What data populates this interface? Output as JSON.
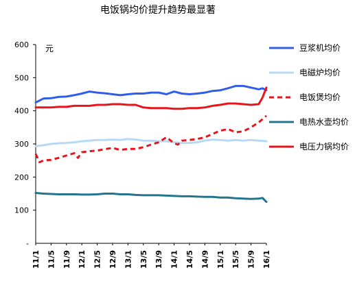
{
  "chart_data": {
    "type": "line",
    "title": "电饭锅均价提升趋势最显著",
    "unit_label": "元",
    "ylim": [
      0,
      600
    ],
    "y_ticks": [
      100,
      200,
      300,
      400,
      500,
      600
    ],
    "y_tick_labels": [
      "100",
      "200",
      "300",
      "400",
      "500",
      "600"
    ],
    "y_zero_label": "-",
    "x_tick_labels": [
      "11/1",
      "11/5",
      "11/9",
      "12/1",
      "12/5",
      "12/9",
      "13/1",
      "13/5",
      "13/9",
      "14/1",
      "14/5",
      "14/9",
      "15/1",
      "15/5",
      "15/9",
      "16/1"
    ],
    "x_range": [
      0,
      60
    ],
    "grid": false,
    "legend_position": "right",
    "series": [
      {
        "name": "豆浆机均价",
        "color": "#2f5ce8",
        "style": "solid",
        "x": [
          0,
          2,
          4,
          6,
          8,
          10,
          12,
          14,
          16,
          18,
          20,
          22,
          24,
          26,
          28,
          30,
          32,
          34,
          36,
          38,
          40,
          42,
          44,
          46,
          48,
          50,
          52,
          54,
          56,
          58,
          59,
          60
        ],
        "values": [
          425,
          437,
          438,
          442,
          443,
          447,
          452,
          458,
          455,
          453,
          450,
          447,
          450,
          452,
          452,
          455,
          455,
          450,
          458,
          452,
          450,
          452,
          455,
          460,
          462,
          468,
          475,
          475,
          470,
          465,
          468,
          462
        ]
      },
      {
        "name": "电磁炉均价",
        "color": "#b6d9f5",
        "style": "solid",
        "x": [
          0,
          2,
          4,
          6,
          8,
          10,
          12,
          14,
          16,
          18,
          20,
          22,
          24,
          26,
          28,
          30,
          32,
          34,
          36,
          38,
          40,
          42,
          44,
          46,
          48,
          50,
          52,
          54,
          56,
          58,
          60
        ],
        "values": [
          293,
          296,
          300,
          302,
          303,
          305,
          308,
          310,
          312,
          312,
          313,
          312,
          315,
          313,
          310,
          310,
          308,
          308,
          305,
          303,
          303,
          305,
          310,
          313,
          312,
          310,
          312,
          310,
          312,
          310,
          308
        ]
      },
      {
        "name": "电饭煲均价",
        "color": "#e8141c",
        "style": "dashed",
        "x": [
          0,
          1,
          2,
          4,
          6,
          8,
          10,
          11,
          12,
          14,
          16,
          18,
          20,
          22,
          24,
          26,
          28,
          30,
          32,
          34,
          36,
          37,
          38,
          40,
          42,
          44,
          46,
          48,
          50,
          52,
          54,
          56,
          58,
          60
        ],
        "values": [
          270,
          245,
          250,
          252,
          258,
          265,
          272,
          258,
          275,
          278,
          280,
          284,
          288,
          282,
          285,
          285,
          290,
          298,
          305,
          320,
          302,
          298,
          310,
          312,
          315,
          320,
          330,
          340,
          345,
          335,
          338,
          350,
          365,
          385
        ]
      },
      {
        "name": "电热水壶均价",
        "color": "#22758c",
        "style": "solid",
        "x": [
          0,
          2,
          4,
          6,
          8,
          10,
          12,
          14,
          16,
          18,
          20,
          22,
          24,
          26,
          28,
          30,
          32,
          34,
          36,
          38,
          40,
          42,
          44,
          46,
          48,
          50,
          52,
          54,
          56,
          58,
          59,
          60
        ],
        "values": [
          152,
          150,
          149,
          148,
          148,
          148,
          147,
          147,
          148,
          150,
          150,
          148,
          148,
          146,
          145,
          145,
          145,
          144,
          143,
          142,
          142,
          141,
          140,
          140,
          138,
          138,
          136,
          135,
          134,
          135,
          137,
          125
        ]
      },
      {
        "name": "电压力锅均价",
        "color": "#e8141c",
        "style": "solid",
        "x": [
          0,
          2,
          4,
          6,
          8,
          10,
          12,
          14,
          16,
          18,
          20,
          22,
          24,
          26,
          28,
          30,
          32,
          34,
          36,
          38,
          40,
          42,
          44,
          46,
          48,
          50,
          52,
          54,
          56,
          58,
          59,
          60
        ],
        "values": [
          410,
          410,
          410,
          412,
          412,
          415,
          415,
          415,
          418,
          418,
          420,
          420,
          418,
          418,
          410,
          408,
          408,
          408,
          406,
          406,
          408,
          408,
          410,
          415,
          418,
          422,
          422,
          420,
          418,
          420,
          440,
          470
        ]
      }
    ]
  }
}
